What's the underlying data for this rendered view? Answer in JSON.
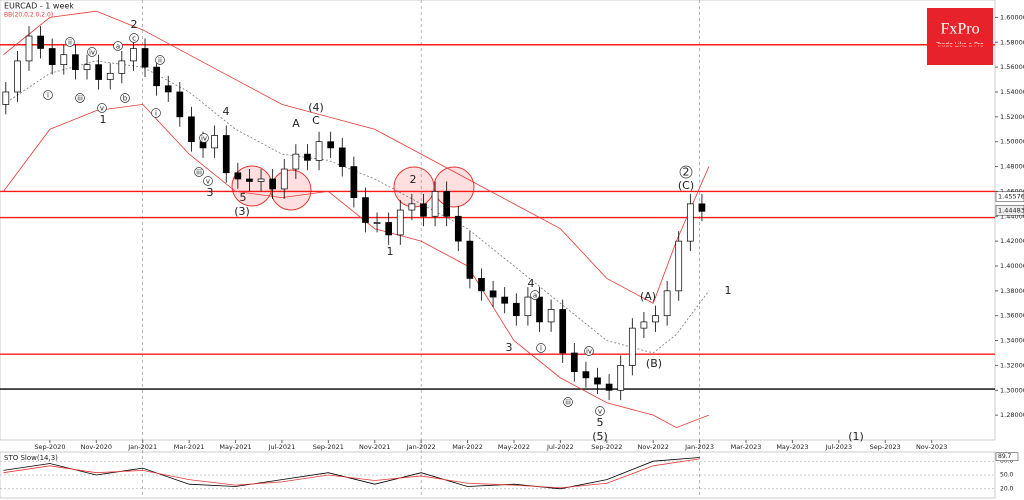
{
  "chart_data": {
    "type": "candlestick",
    "title": "EURCAD - 1 week",
    "subtitle": "BB(20,0,2.0,2.0)",
    "logo": "FxPro",
    "logo_tagline": "Trade Like a Pro",
    "xlim": [
      -2.15,
      40.73
    ],
    "xticks": [
      {
        "value": 0,
        "label": "Sep-2020"
      },
      {
        "value": 2,
        "label": "Nov-2020"
      },
      {
        "value": 4,
        "label": "Jan-2021"
      },
      {
        "value": 6,
        "label": "Mar-2021"
      },
      {
        "value": 8,
        "label": "May-2021"
      },
      {
        "value": 10,
        "label": "Jul-2021"
      },
      {
        "value": 12,
        "label": "Sep-2021"
      },
      {
        "value": 14,
        "label": "Nov-2021"
      },
      {
        "value": 16,
        "label": "Jan-2022"
      },
      {
        "value": 18,
        "label": "Mar-2022"
      },
      {
        "value": 20,
        "label": "May-2022"
      },
      {
        "value": 22,
        "label": "Jul-2022"
      },
      {
        "value": 24,
        "label": "Sep-2022"
      },
      {
        "value": 26,
        "label": "Nov-2022"
      },
      {
        "value": 28,
        "label": "Jan-2023"
      },
      {
        "value": 30,
        "label": "Mar-2023"
      },
      {
        "value": 32,
        "label": "May-2023"
      },
      {
        "value": 34,
        "label": "Jul-2023"
      },
      {
        "value": 36,
        "label": "Sep-2023"
      },
      {
        "value": 38,
        "label": "Nov-2023"
      }
    ],
    "vlines": [
      4,
      16,
      28
    ],
    "ylim": [
      1.26,
      1.614
    ],
    "yticks": [
      {
        "value": 1.28,
        "label": "1.28000"
      },
      {
        "value": 1.3,
        "label": "1.30000"
      },
      {
        "value": 1.32,
        "label": "1.32000"
      },
      {
        "value": 1.34,
        "label": "1.34000"
      },
      {
        "value": 1.36,
        "label": "1.36000"
      },
      {
        "value": 1.38,
        "label": "1.38000"
      },
      {
        "value": 1.4,
        "label": "1.40000"
      },
      {
        "value": 1.42,
        "label": "1.42000"
      },
      {
        "value": 1.44,
        "label": "1.44000"
      },
      {
        "value": 1.46,
        "label": "1.46000"
      },
      {
        "value": 1.48,
        "label": "1.48000"
      },
      {
        "value": 1.5,
        "label": "1.50000"
      },
      {
        "value": 1.52,
        "label": "1.52000"
      },
      {
        "value": 1.54,
        "label": "1.54000"
      },
      {
        "value": 1.56,
        "label": "1.56000"
      },
      {
        "value": 1.58,
        "label": "1.58000"
      },
      {
        "value": 1.6,
        "label": "1.60000"
      }
    ],
    "x": [
      -1.9,
      -1.4,
      -0.9,
      -0.4,
      0.1,
      0.6,
      1.1,
      1.6,
      2.1,
      2.6,
      3.1,
      3.6,
      4.1,
      4.6,
      5.1,
      5.6,
      6.1,
      6.6,
      7.1,
      7.6,
      8.1,
      8.6,
      9.1,
      9.6,
      10.1,
      10.6,
      11.1,
      11.6,
      12.1,
      12.6,
      13.1,
      13.6,
      14.1,
      14.6,
      15.1,
      15.6,
      16.1,
      16.6,
      17.1,
      17.6,
      18.1,
      18.6,
      19.1,
      19.6,
      20.1,
      20.6,
      21.1,
      21.6,
      22.1,
      22.6,
      23.1,
      23.6,
      24.1,
      24.6,
      25.1,
      25.6,
      26.1,
      26.6,
      27.1,
      27.6,
      28.1
    ],
    "open": [
      1.53,
      1.54,
      1.565,
      1.585,
      1.575,
      1.562,
      1.57,
      1.558,
      1.562,
      1.55,
      1.555,
      1.565,
      1.575,
      1.56,
      1.545,
      1.54,
      1.52,
      1.5,
      1.495,
      1.505,
      1.475,
      1.47,
      1.468,
      1.47,
      1.462,
      1.478,
      1.49,
      1.485,
      1.5,
      1.495,
      1.48,
      1.455,
      1.435,
      1.435,
      1.425,
      1.445,
      1.45,
      1.44,
      1.46,
      1.44,
      1.42,
      1.39,
      1.38,
      1.375,
      1.37,
      1.36,
      1.375,
      1.355,
      1.365,
      1.33,
      1.315,
      1.31,
      1.305,
      1.3,
      1.32,
      1.35,
      1.355,
      1.36,
      1.38,
      1.42,
      1.45
    ],
    "high": [
      1.548,
      1.573,
      1.593,
      1.593,
      1.583,
      1.578,
      1.578,
      1.57,
      1.57,
      1.563,
      1.573,
      1.583,
      1.583,
      1.568,
      1.553,
      1.548,
      1.528,
      1.508,
      1.513,
      1.513,
      1.483,
      1.478,
      1.478,
      1.478,
      1.486,
      1.498,
      1.498,
      1.508,
      1.508,
      1.503,
      1.488,
      1.463,
      1.443,
      1.443,
      1.453,
      1.458,
      1.458,
      1.468,
      1.468,
      1.448,
      1.428,
      1.398,
      1.388,
      1.383,
      1.378,
      1.383,
      1.383,
      1.373,
      1.373,
      1.338,
      1.323,
      1.318,
      1.313,
      1.328,
      1.358,
      1.363,
      1.368,
      1.388,
      1.428,
      1.458,
      1.458
    ],
    "low": [
      1.522,
      1.532,
      1.557,
      1.567,
      1.554,
      1.554,
      1.55,
      1.55,
      1.542,
      1.542,
      1.547,
      1.557,
      1.552,
      1.537,
      1.532,
      1.512,
      1.492,
      1.487,
      1.487,
      1.467,
      1.462,
      1.46,
      1.46,
      1.454,
      1.454,
      1.47,
      1.477,
      1.477,
      1.487,
      1.472,
      1.447,
      1.427,
      1.427,
      1.417,
      1.417,
      1.437,
      1.432,
      1.432,
      1.432,
      1.412,
      1.382,
      1.372,
      1.367,
      1.362,
      1.352,
      1.352,
      1.347,
      1.347,
      1.322,
      1.307,
      1.302,
      1.297,
      1.292,
      1.292,
      1.312,
      1.342,
      1.347,
      1.352,
      1.372,
      1.412,
      1.436
    ],
    "close": [
      1.54,
      1.565,
      1.585,
      1.575,
      1.562,
      1.57,
      1.558,
      1.562,
      1.55,
      1.555,
      1.565,
      1.575,
      1.56,
      1.545,
      1.54,
      1.52,
      1.5,
      1.495,
      1.505,
      1.475,
      1.47,
      1.468,
      1.47,
      1.462,
      1.478,
      1.49,
      1.485,
      1.5,
      1.495,
      1.48,
      1.455,
      1.435,
      1.435,
      1.425,
      1.445,
      1.45,
      1.44,
      1.46,
      1.44,
      1.42,
      1.39,
      1.38,
      1.375,
      1.37,
      1.36,
      1.375,
      1.355,
      1.365,
      1.33,
      1.315,
      1.31,
      1.305,
      1.3,
      1.32,
      1.35,
      1.355,
      1.36,
      1.38,
      1.42,
      1.45,
      1.444
    ],
    "bands": {
      "x": [
        -2,
        0,
        2,
        4,
        6,
        8,
        10,
        12,
        14,
        16,
        18,
        20,
        22,
        24,
        26,
        27,
        28.4
      ],
      "upper": [
        1.57,
        1.6,
        1.605,
        1.59,
        1.57,
        1.55,
        1.53,
        1.52,
        1.51,
        1.49,
        1.47,
        1.45,
        1.43,
        1.39,
        1.37,
        1.42,
        1.48
      ],
      "middle": [
        1.53,
        1.555,
        1.565,
        1.56,
        1.54,
        1.51,
        1.49,
        1.485,
        1.47,
        1.45,
        1.43,
        1.4,
        1.37,
        1.34,
        1.33,
        1.345,
        1.38
      ],
      "lower": [
        1.46,
        1.51,
        1.525,
        1.53,
        1.49,
        1.46,
        1.455,
        1.46,
        1.43,
        1.42,
        1.4,
        1.34,
        1.31,
        1.29,
        1.28,
        1.27,
        1.28
      ],
      "color": "#e53935"
    },
    "levels": [
      {
        "value": 1.578,
        "color": "#ff1a1a"
      },
      {
        "value": 1.46,
        "color": "#ff1a1a"
      },
      {
        "value": 1.439,
        "color": "#ff1a1a"
      },
      {
        "value": 1.329,
        "color": "#ff1a1a"
      },
      {
        "value": 1.301,
        "color": "#000000"
      }
    ],
    "price_labels": [
      1.45576,
      1.44483
    ],
    "annotations": [
      "2",
      "1",
      "4",
      "3",
      "5",
      "(3)",
      "(4)",
      "A",
      "C",
      "1",
      "2",
      "4",
      "3",
      "5",
      "(5)",
      "(C)",
      "(A)",
      "(B)",
      "1",
      "(1)"
    ],
    "circled_labels": [
      "ii",
      "iv",
      "a",
      "c",
      "ii",
      "i",
      "iii",
      "v",
      "b",
      "i",
      "iv",
      "iii",
      "v",
      "a",
      "iv",
      "i",
      "iii",
      "v",
      "2"
    ],
    "stochastic": {
      "title": "STO Slow(14,3)",
      "ylim": [
        0,
        100
      ],
      "yticks": [
        {
          "value": 20,
          "label": "20.0"
        },
        {
          "value": 50,
          "label": "50.0"
        },
        {
          "value": 80,
          "label": "80.0"
        }
      ],
      "last": 89.7,
      "x": [
        -2,
        0,
        2,
        4,
        6,
        8,
        10,
        12,
        14,
        16,
        18,
        20,
        22,
        24,
        26,
        28
      ],
      "main": [
        60,
        75,
        50,
        65,
        30,
        25,
        40,
        55,
        30,
        55,
        25,
        30,
        20,
        40,
        80,
        88
      ],
      "signal": [
        55,
        70,
        55,
        60,
        40,
        28,
        35,
        50,
        38,
        48,
        32,
        28,
        22,
        32,
        70,
        85
      ]
    }
  }
}
